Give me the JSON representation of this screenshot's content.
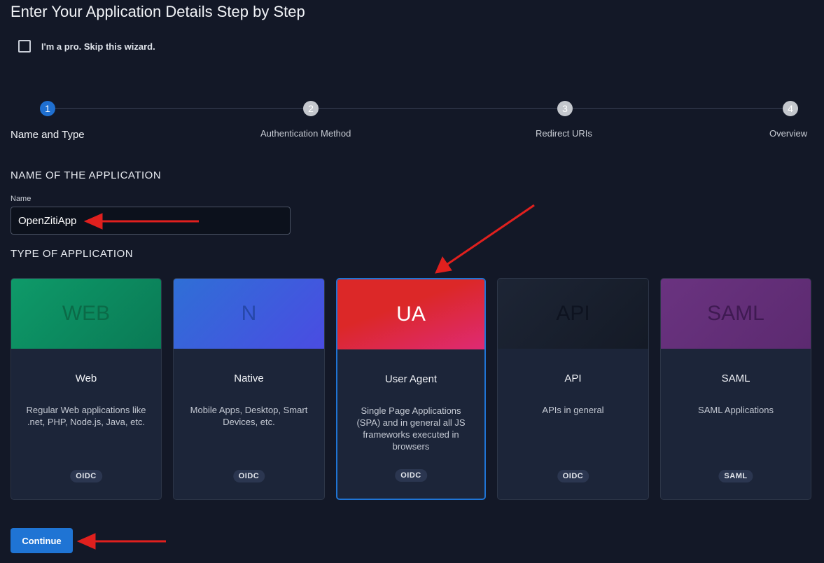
{
  "title": "Enter Your Application Details Step by Step",
  "skip_label": "I'm a pro. Skip this wizard.",
  "steps": [
    {
      "num": "1",
      "label": "Name and Type"
    },
    {
      "num": "2",
      "label": "Authentication Method"
    },
    {
      "num": "3",
      "label": "Redirect URIs"
    },
    {
      "num": "4",
      "label": "Overview"
    }
  ],
  "name_section": {
    "heading": "NAME OF THE APPLICATION",
    "label": "Name",
    "value": "OpenZitiApp"
  },
  "type_section": {
    "heading": "TYPE OF APPLICATION",
    "selected": "User Agent",
    "cards": [
      {
        "abbr": "WEB",
        "name": "Web",
        "desc": "Regular Web applications like .net, PHP, Node.js, Java, etc.",
        "badge": "OIDC"
      },
      {
        "abbr": "N",
        "name": "Native",
        "desc": "Mobile Apps, Desktop, Smart Devices, etc.",
        "badge": "OIDC"
      },
      {
        "abbr": "UA",
        "name": "User Agent",
        "desc": "Single Page Applications (SPA) and in general all JS frameworks executed in browsers",
        "badge": "OIDC"
      },
      {
        "abbr": "API",
        "name": "API",
        "desc": "APIs in general",
        "badge": "OIDC"
      },
      {
        "abbr": "SAML",
        "name": "SAML",
        "desc": "SAML Applications",
        "badge": "SAML"
      }
    ]
  },
  "continue_label": "Continue",
  "colors": {
    "accent": "#1f74d4",
    "annotation": "#e0201e"
  }
}
